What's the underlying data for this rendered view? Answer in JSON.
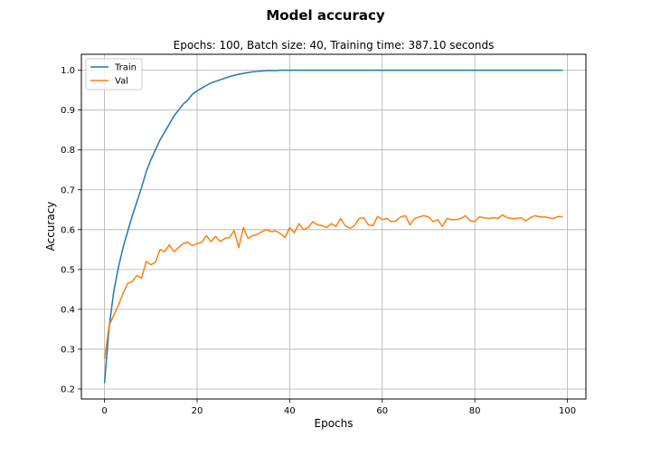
{
  "chart_data": {
    "type": "line",
    "title": "Model accuracy",
    "subtitle": "Epochs: 100, Batch size: 40, Training time: 387.10 seconds",
    "xlabel": "Epochs",
    "ylabel": "Accuracy",
    "xlim": [
      -5,
      104
    ],
    "ylim": [
      0.175,
      1.04
    ],
    "xticks": [
      0,
      20,
      40,
      60,
      80,
      100
    ],
    "yticks": [
      0.2,
      0.3,
      0.4,
      0.5,
      0.6,
      0.7,
      0.8,
      0.9,
      1.0
    ],
    "xtick_labels": [
      "0",
      "20",
      "40",
      "60",
      "80",
      "100"
    ],
    "ytick_labels": [
      "0.2",
      "0.3",
      "0.4",
      "0.5",
      "0.6",
      "0.7",
      "0.8",
      "0.9",
      "1.0"
    ],
    "grid": true,
    "legend_position": "upper-left",
    "series": [
      {
        "name": "Train",
        "color": "#1f77b4",
        "values": [
          0.215,
          0.355,
          0.445,
          0.505,
          0.555,
          0.595,
          0.635,
          0.67,
          0.705,
          0.745,
          0.775,
          0.8,
          0.825,
          0.845,
          0.865,
          0.885,
          0.9,
          0.915,
          0.925,
          0.94,
          0.948,
          0.955,
          0.962,
          0.968,
          0.972,
          0.976,
          0.98,
          0.984,
          0.987,
          0.99,
          0.992,
          0.994,
          0.996,
          0.997,
          0.998,
          0.999,
          0.999,
          0.999,
          1.0,
          1.0,
          1.0,
          1.0,
          1.0,
          1.0,
          1.0,
          1.0,
          1.0,
          1.0,
          1.0,
          1.0,
          1.0,
          1.0,
          1.0,
          1.0,
          1.0,
          1.0,
          1.0,
          1.0,
          1.0,
          1.0,
          1.0,
          1.0,
          1.0,
          1.0,
          1.0,
          1.0,
          1.0,
          1.0,
          1.0,
          1.0,
          1.0,
          1.0,
          1.0,
          1.0,
          1.0,
          1.0,
          1.0,
          1.0,
          1.0,
          1.0,
          1.0,
          1.0,
          1.0,
          1.0,
          1.0,
          1.0,
          1.0,
          1.0,
          1.0,
          1.0,
          1.0,
          1.0,
          1.0,
          1.0,
          1.0,
          1.0,
          1.0,
          1.0,
          1.0,
          1.0
        ]
      },
      {
        "name": "Val",
        "color": "#ff7f0e",
        "values": [
          0.275,
          0.36,
          0.385,
          0.41,
          0.44,
          0.465,
          0.47,
          0.485,
          0.478,
          0.52,
          0.512,
          0.518,
          0.55,
          0.545,
          0.562,
          0.545,
          0.555,
          0.565,
          0.568,
          0.56,
          0.565,
          0.568,
          0.585,
          0.57,
          0.583,
          0.57,
          0.578,
          0.58,
          0.598,
          0.555,
          0.605,
          0.578,
          0.585,
          0.588,
          0.595,
          0.6,
          0.595,
          0.597,
          0.59,
          0.58,
          0.605,
          0.592,
          0.615,
          0.6,
          0.605,
          0.62,
          0.612,
          0.61,
          0.605,
          0.615,
          0.608,
          0.628,
          0.61,
          0.603,
          0.61,
          0.628,
          0.63,
          0.612,
          0.61,
          0.633,
          0.625,
          0.628,
          0.62,
          0.622,
          0.632,
          0.635,
          0.612,
          0.628,
          0.632,
          0.635,
          0.632,
          0.62,
          0.625,
          0.608,
          0.628,
          0.625,
          0.625,
          0.628,
          0.635,
          0.622,
          0.62,
          0.632,
          0.63,
          0.628,
          0.63,
          0.628,
          0.637,
          0.63,
          0.628,
          0.628,
          0.63,
          0.622,
          0.63,
          0.635,
          0.632,
          0.632,
          0.63,
          0.628,
          0.633,
          0.632
        ]
      }
    ]
  }
}
